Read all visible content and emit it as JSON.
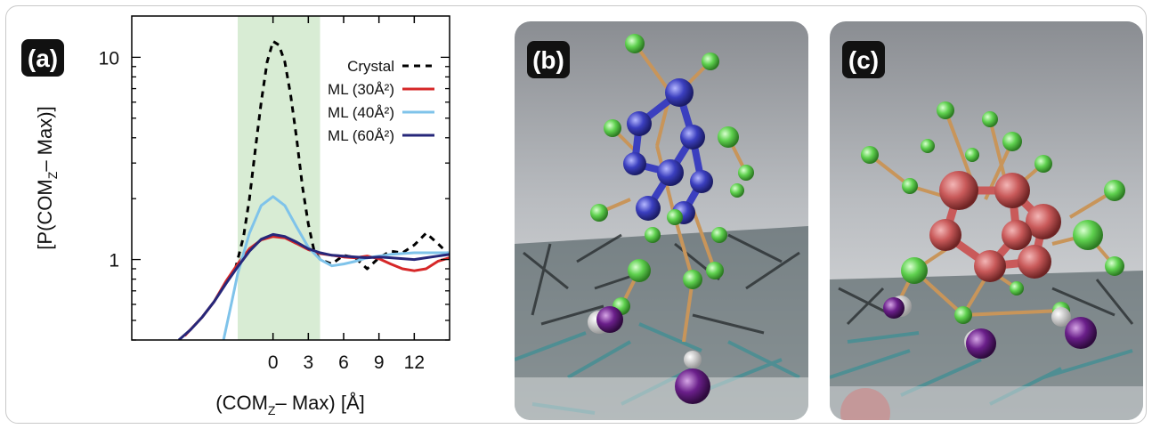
{
  "panel_a": {
    "label": "(a)",
    "ylabel_main": "[P(COM",
    "ylabel_sub": "Z",
    "ylabel_tail": "– Max)]",
    "xlabel_main": "(COM",
    "xlabel_sub": "Z",
    "xlabel_tail": "– Max) [Å]"
  },
  "panel_b": {
    "label": "(b)"
  },
  "panel_c": {
    "label": "(c)"
  },
  "colors": {
    "crystal": "#000000",
    "ml30": "#d62728",
    "ml40": "#7fc3ea",
    "ml60": "#26277a",
    "shade": "#d8ecd4",
    "dark_label_bg": "#111111"
  },
  "chart_data": {
    "type": "line",
    "title": "",
    "xlabel": "(COMZ– Max) [Å]",
    "ylabel": "[P(COMZ– Max)]",
    "yscale": "log",
    "xlim": [
      -12,
      15
    ],
    "ylim": [
      0.4,
      16
    ],
    "xticks": [
      0,
      3,
      6,
      9,
      12
    ],
    "yticks": [
      1,
      10
    ],
    "shaded_region": [
      -3,
      4
    ],
    "legend_position": "top-right",
    "series": [
      {
        "name": "Crystal",
        "style": "dashed",
        "color": "#000000",
        "x": [
          -3.2,
          -2.5,
          -2,
          -1.5,
          -1,
          -0.5,
          0,
          0.5,
          1,
          1.5,
          2,
          2.5,
          3,
          3.5,
          4,
          5,
          6,
          7,
          8,
          9,
          10,
          11,
          12,
          13,
          14,
          15
        ],
        "y": [
          0.9,
          1.3,
          2.0,
          3.5,
          6.0,
          9.5,
          12.0,
          11.5,
          9.5,
          6.5,
          4.0,
          2.3,
          1.5,
          1.1,
          1.0,
          0.95,
          1.05,
          1.02,
          0.9,
          1.02,
          1.1,
          1.08,
          1.18,
          1.35,
          1.2,
          1.05
        ]
      },
      {
        "name": "ML (30Å²)",
        "style": "solid",
        "color": "#d62728",
        "x": [
          -7.5,
          -6,
          -5,
          -4,
          -3,
          -2,
          -1,
          0,
          1,
          2,
          3,
          4,
          5,
          6,
          7,
          8,
          9,
          10,
          11,
          12,
          13,
          14,
          15
        ],
        "y": [
          0.42,
          0.52,
          0.62,
          0.78,
          0.95,
          1.13,
          1.25,
          1.3,
          1.28,
          1.2,
          1.12,
          1.07,
          1.05,
          1.03,
          1.02,
          1.04,
          1.01,
          0.95,
          0.9,
          0.88,
          0.9,
          0.98,
          1.02
        ]
      },
      {
        "name": "ML (40Å²)",
        "style": "solid",
        "color": "#7fc3ea",
        "x": [
          -4.2,
          -3.5,
          -3,
          -2,
          -1,
          0,
          1,
          2,
          3,
          4,
          5,
          6,
          7,
          8,
          9,
          10,
          11,
          12,
          13,
          14,
          15
        ],
        "y": [
          0.4,
          0.62,
          0.85,
          1.35,
          1.85,
          2.05,
          1.85,
          1.45,
          1.15,
          1.0,
          0.93,
          0.95,
          0.98,
          1.02,
          1.04,
          1.06,
          1.07,
          1.08,
          1.08,
          1.08,
          1.08
        ]
      },
      {
        "name": "ML (60Å²)",
        "style": "solid",
        "color": "#26277a",
        "x": [
          -8,
          -7,
          -6,
          -5,
          -4,
          -3,
          -2,
          -1,
          0,
          1,
          2,
          3,
          4,
          5,
          6,
          7,
          8,
          9,
          10,
          11,
          12,
          13,
          14,
          15
        ],
        "y": [
          0.4,
          0.45,
          0.52,
          0.62,
          0.76,
          0.92,
          1.1,
          1.26,
          1.33,
          1.3,
          1.22,
          1.13,
          1.08,
          1.05,
          1.04,
          1.03,
          1.02,
          1.03,
          1.02,
          1.01,
          1.0,
          1.02,
          1.04,
          1.06
        ]
      }
    ]
  }
}
